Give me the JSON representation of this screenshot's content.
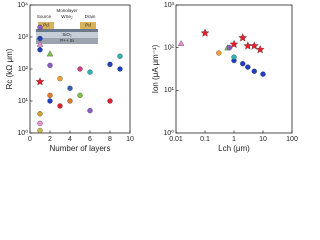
{
  "chart_data": [
    {
      "type": "scatter",
      "xlabel": "Number of layers",
      "ylabel": "Rc (kΩ μm)",
      "xlim": [
        0,
        10
      ],
      "xticks": [
        0,
        2,
        4,
        6,
        8,
        10
      ],
      "ylim": [
        1,
        10000
      ],
      "ylog": true,
      "yticks": [
        {
          "value": 1,
          "label": "10⁰"
        },
        {
          "value": 10,
          "label": "10¹"
        },
        {
          "value": 100,
          "label": "10²"
        },
        {
          "value": 1000,
          "label": "10³"
        },
        {
          "value": 10000,
          "label": "10⁴"
        }
      ],
      "x": [
        1,
        1,
        1,
        1,
        1,
        1,
        1,
        1,
        2,
        2,
        2,
        2,
        3,
        3,
        4,
        4,
        5,
        5,
        6,
        6,
        8,
        8,
        9,
        9
      ],
      "values": [
        40,
        900,
        400,
        600,
        2000,
        4,
        2,
        1.2,
        300,
        130,
        15,
        10,
        50,
        7,
        25,
        10,
        100,
        15,
        80,
        5,
        140,
        10,
        250,
        100
      ],
      "colors": [
        "#e0202a",
        "#1f3fbf",
        "#1f3fbf",
        "#e58bd0",
        "#8a5cc4",
        "#c9a227",
        "#e58bd0",
        "#c9b84a",
        "#7cc04a",
        "#8a5cc4",
        "#e07a2a",
        "#1f3fbf",
        "#f0a030",
        "#e0202a",
        "#3060c0",
        "#e07a2a",
        "#d04080",
        "#7cc04a",
        "#30b0b0",
        "#8a5cc4",
        "#1f3fbf",
        "#e0202a",
        "#30b0b0",
        "#1f3fbf"
      ],
      "markers": [
        "star",
        "circle",
        "circle",
        "triangle",
        "circle",
        "circle",
        "circle",
        "circle",
        "triangle",
        "circle",
        "circle",
        "circle",
        "circle",
        "circle",
        "circle",
        "circle",
        "circle",
        "circle",
        "circle",
        "circle",
        "circle",
        "circle",
        "circle",
        "circle"
      ],
      "inset_labels": [
        "Source",
        "Monolayer",
        "WSe₂",
        "Drain",
        "Pd",
        "Pd",
        "SiO₂",
        "P++ Si"
      ]
    },
    {
      "type": "scatter",
      "xlabel": "Lch (μm)",
      "ylabel": "Ion (μA μm⁻¹)",
      "xlim": [
        0.01,
        100
      ],
      "xlog": true,
      "xticks": [
        0.01,
        0.1,
        1,
        10,
        100
      ],
      "ylim": [
        1,
        1000
      ],
      "ylog": true,
      "yticks": [
        {
          "value": 1,
          "label": "10⁰"
        },
        {
          "value": 10,
          "label": "10¹"
        },
        {
          "value": 100,
          "label": "10²"
        },
        {
          "value": 1000,
          "label": "10³"
        }
      ],
      "x": [
        0.015,
        0.1,
        0.6,
        0.3,
        1,
        2,
        3,
        5,
        8,
        1,
        2,
        3,
        5,
        10,
        1,
        0.7
      ],
      "values": [
        126,
        220,
        100,
        75,
        120,
        170,
        110,
        110,
        90,
        50,
        42,
        35,
        28,
        24,
        60,
        100
      ],
      "colors": [
        "#e58bd0",
        "#e0202a",
        "#7cc04a",
        "#f0a030",
        "#e0202a",
        "#e0202a",
        "#e0202a",
        "#e0202a",
        "#e0202a",
        "#1f3fbf",
        "#1f3fbf",
        "#1f3fbf",
        "#1f3fbf",
        "#1f3fbf",
        "#30b0b0",
        "#8a5cc4"
      ],
      "markers": [
        "triangle",
        "star",
        "triangle",
        "circle",
        "star",
        "star",
        "star",
        "star",
        "star",
        "circle",
        "circle",
        "circle",
        "circle",
        "circle",
        "circle",
        "circle"
      ]
    }
  ]
}
